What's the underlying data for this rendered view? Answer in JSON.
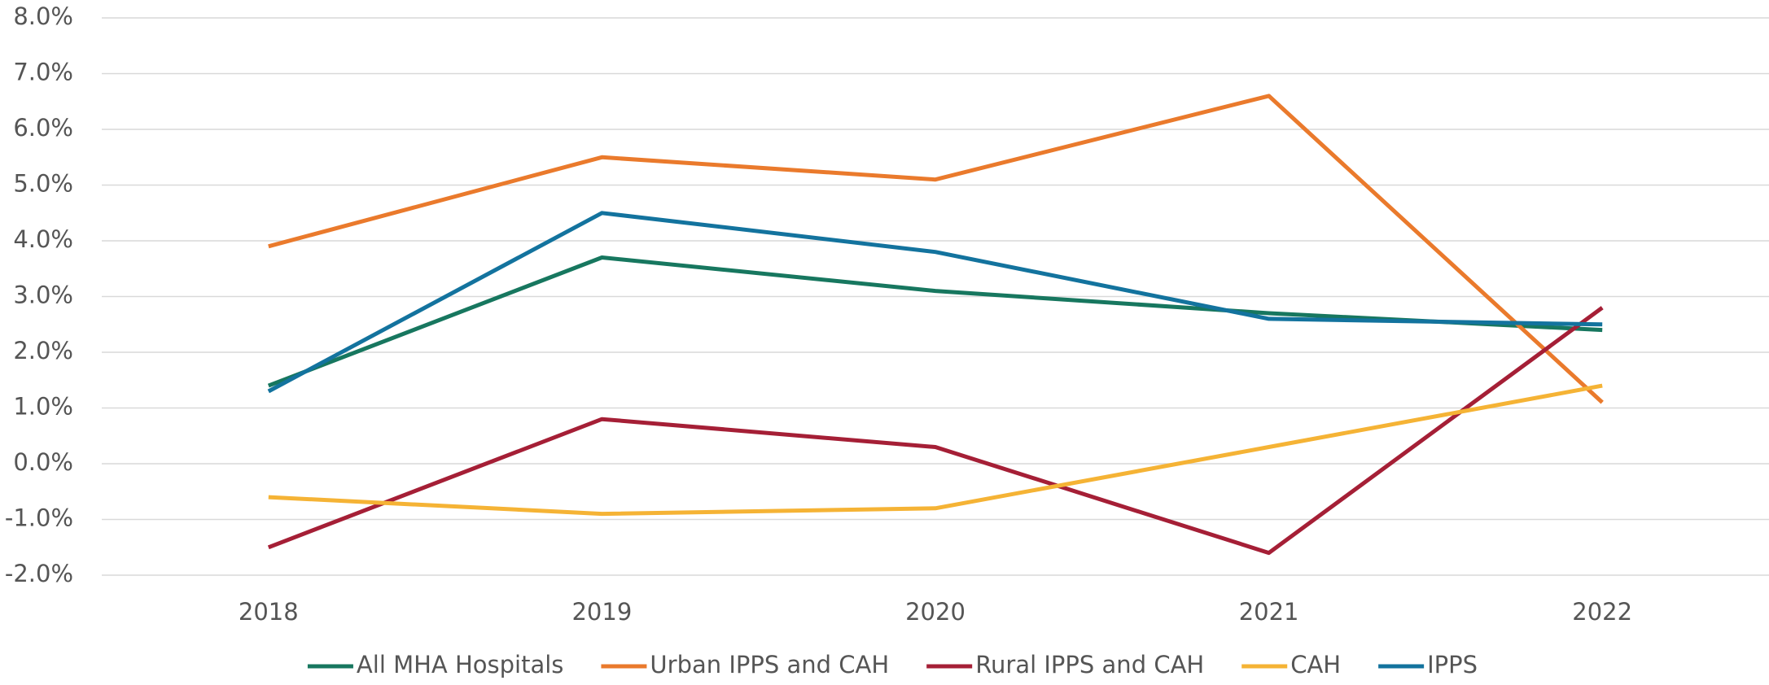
{
  "chart_data": {
    "type": "line",
    "categories": [
      "2018",
      "2019",
      "2020",
      "2021",
      "2022"
    ],
    "series": [
      {
        "name": "All MHA Hospitals",
        "color": "#17775f",
        "values": [
          1.4,
          3.7,
          3.1,
          2.7,
          2.4
        ]
      },
      {
        "name": "Urban IPPS and CAH",
        "color": "#ea7a2c",
        "values": [
          3.9,
          5.5,
          5.1,
          6.6,
          1.1
        ]
      },
      {
        "name": "Rural IPPS and CAH",
        "color": "#a51f36",
        "values": [
          -1.5,
          0.8,
          0.3,
          -1.6,
          2.8
        ]
      },
      {
        "name": "CAH",
        "color": "#f5b335",
        "values": [
          -0.6,
          -0.9,
          -0.8,
          0.3,
          1.4
        ]
      },
      {
        "name": "IPPS",
        "color": "#13739e",
        "values": [
          1.3,
          4.5,
          3.8,
          2.6,
          2.5
        ]
      }
    ],
    "ylim": [
      -2,
      8
    ],
    "yticks": [
      {
        "value": -2,
        "label": "-2.0%"
      },
      {
        "value": -1,
        "label": "-1.0%"
      },
      {
        "value": 0,
        "label": "0.0%"
      },
      {
        "value": 1,
        "label": "1.0%"
      },
      {
        "value": 2,
        "label": "2.0%"
      },
      {
        "value": 3,
        "label": "3.0%"
      },
      {
        "value": 4,
        "label": "4.0%"
      },
      {
        "value": 5,
        "label": "5.0%"
      },
      {
        "value": 6,
        "label": "6.0%"
      },
      {
        "value": 7,
        "label": "7.0%"
      },
      {
        "value": 8,
        "label": "8.0%"
      }
    ],
    "grid": true,
    "legend": "bottom"
  }
}
